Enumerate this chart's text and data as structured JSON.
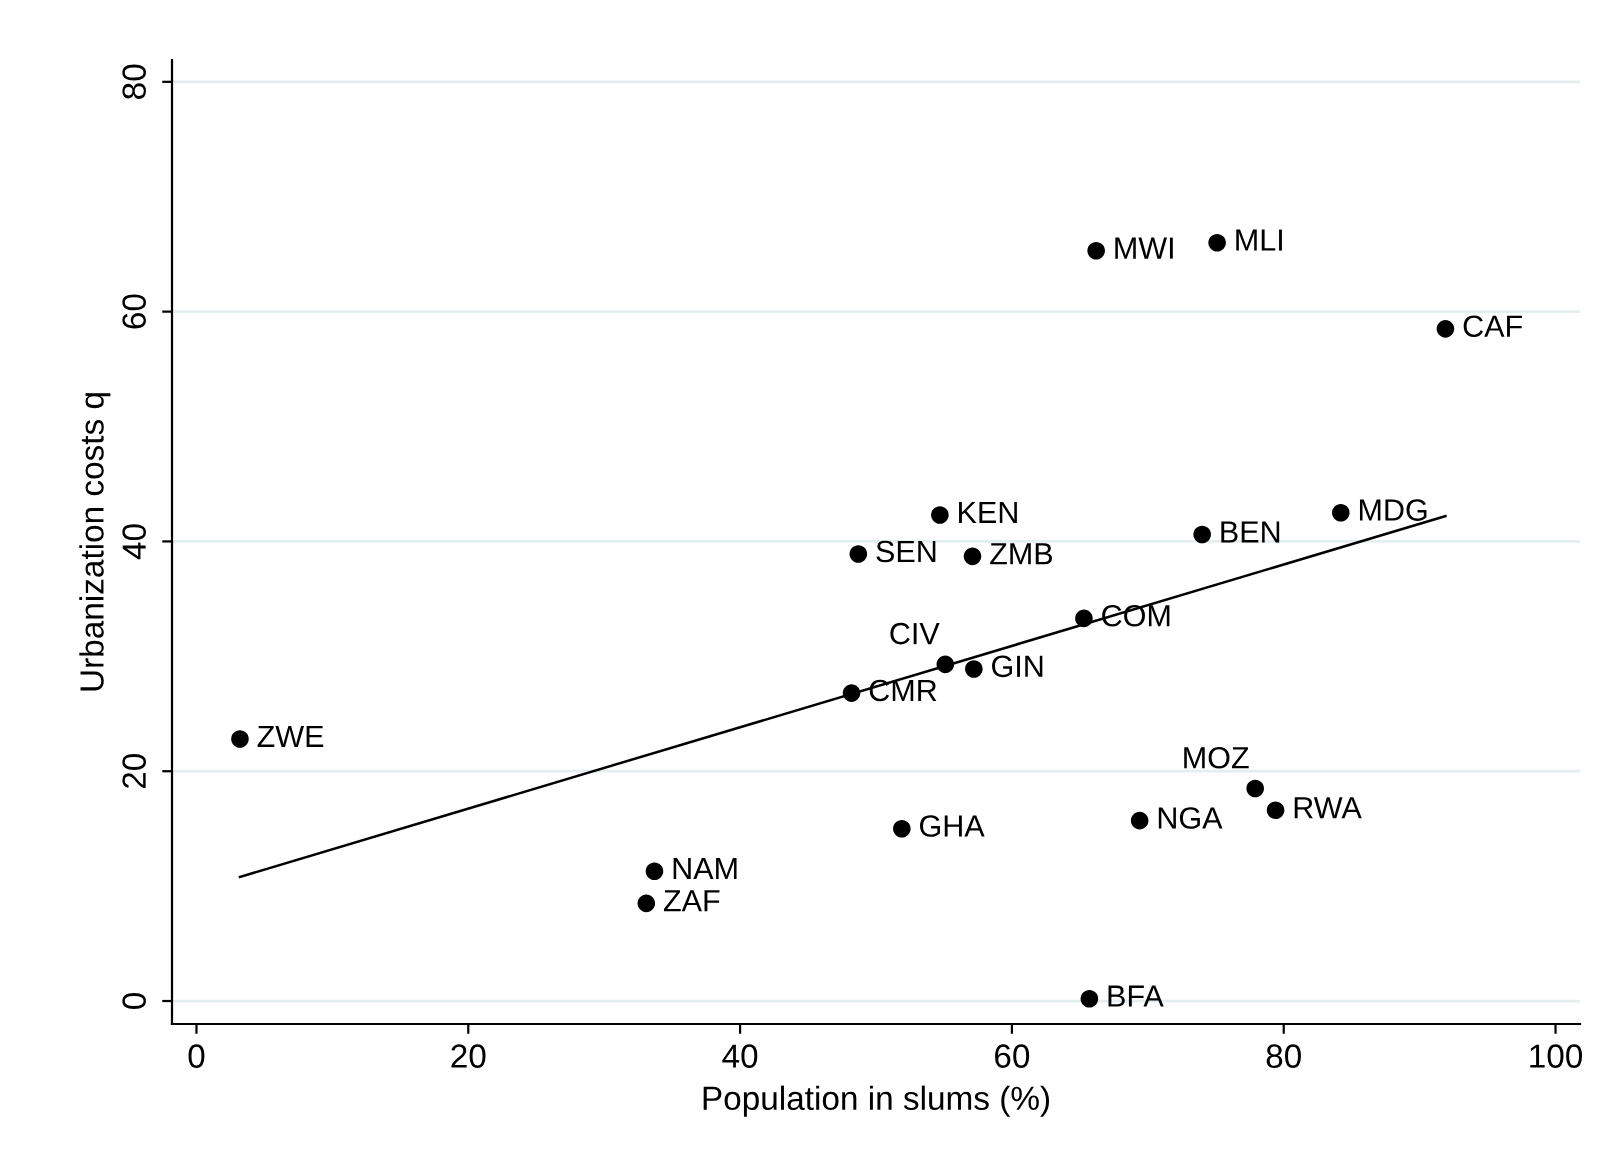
{
  "chart_data": {
    "type": "scatter",
    "xlabel": "Population in slums (%)",
    "ylabel": "Urbanization costs q",
    "xlim": [
      -1.8,
      101.8
    ],
    "ylim": [
      -2,
      81.9
    ],
    "xticks": [
      0,
      20,
      40,
      60,
      80,
      100
    ],
    "yticks": [
      0,
      20,
      40,
      60,
      80
    ],
    "grid": "y",
    "legend": false,
    "series": [
      {
        "color": "#000000",
        "marker": "circle",
        "x": [
          3.2,
          33.7,
          33.1,
          48.2,
          48.7,
          51.9,
          54.7,
          55.1,
          57.2,
          57.1,
          65.3,
          65.7,
          66.2,
          69.4,
          74.0,
          75.1,
          77.9,
          79.4,
          84.2,
          91.9
        ],
        "values": [
          22.8,
          11.3,
          8.5,
          26.8,
          38.9,
          15.0,
          42.3,
          29.3,
          28.9,
          38.7,
          33.3,
          0.2,
          65.3,
          15.7,
          40.6,
          66.0,
          18.5,
          16.6,
          42.5,
          58.5
        ]
      },
      {
        "type": "line",
        "color": "#000000",
        "marker": "none",
        "line_style": "solid",
        "x": [
          3.2,
          91.9
        ],
        "values": [
          10.8,
          42.2
        ]
      }
    ],
    "annotations": [
      {
        "text": "ZWE",
        "x": 3.2,
        "y": 22.8
      },
      {
        "text": "NAM",
        "x": 33.7,
        "y": 11.3
      },
      {
        "text": "ZAF",
        "x": 33.1,
        "y": 8.5
      },
      {
        "text": "CMR",
        "x": 48.2,
        "y": 26.8
      },
      {
        "text": "SEN",
        "x": 48.7,
        "y": 38.9
      },
      {
        "text": "GHA",
        "x": 51.9,
        "y": 15.0
      },
      {
        "text": "KEN",
        "x": 54.7,
        "y": 42.3
      },
      {
        "text": "CIV",
        "x": 55.1,
        "y": 29.3
      },
      {
        "text": "GIN",
        "x": 57.2,
        "y": 28.9
      },
      {
        "text": "ZMB",
        "x": 57.1,
        "y": 38.7
      },
      {
        "text": "COM",
        "x": 65.3,
        "y": 33.3
      },
      {
        "text": "BFA",
        "x": 65.7,
        "y": 0.2
      },
      {
        "text": "MWI",
        "x": 66.2,
        "y": 65.3
      },
      {
        "text": "NGA",
        "x": 69.4,
        "y": 15.7
      },
      {
        "text": "BEN",
        "x": 74.0,
        "y": 40.6
      },
      {
        "text": "MLI",
        "x": 75.1,
        "y": 66.0
      },
      {
        "text": "MOZ",
        "x": 77.9,
        "y": 18.5
      },
      {
        "text": "RWA",
        "x": 79.4,
        "y": 16.6
      },
      {
        "text": "MDG",
        "x": 84.2,
        "y": 42.5
      },
      {
        "text": "CAF",
        "x": 91.9,
        "y": 58.5
      }
    ]
  }
}
